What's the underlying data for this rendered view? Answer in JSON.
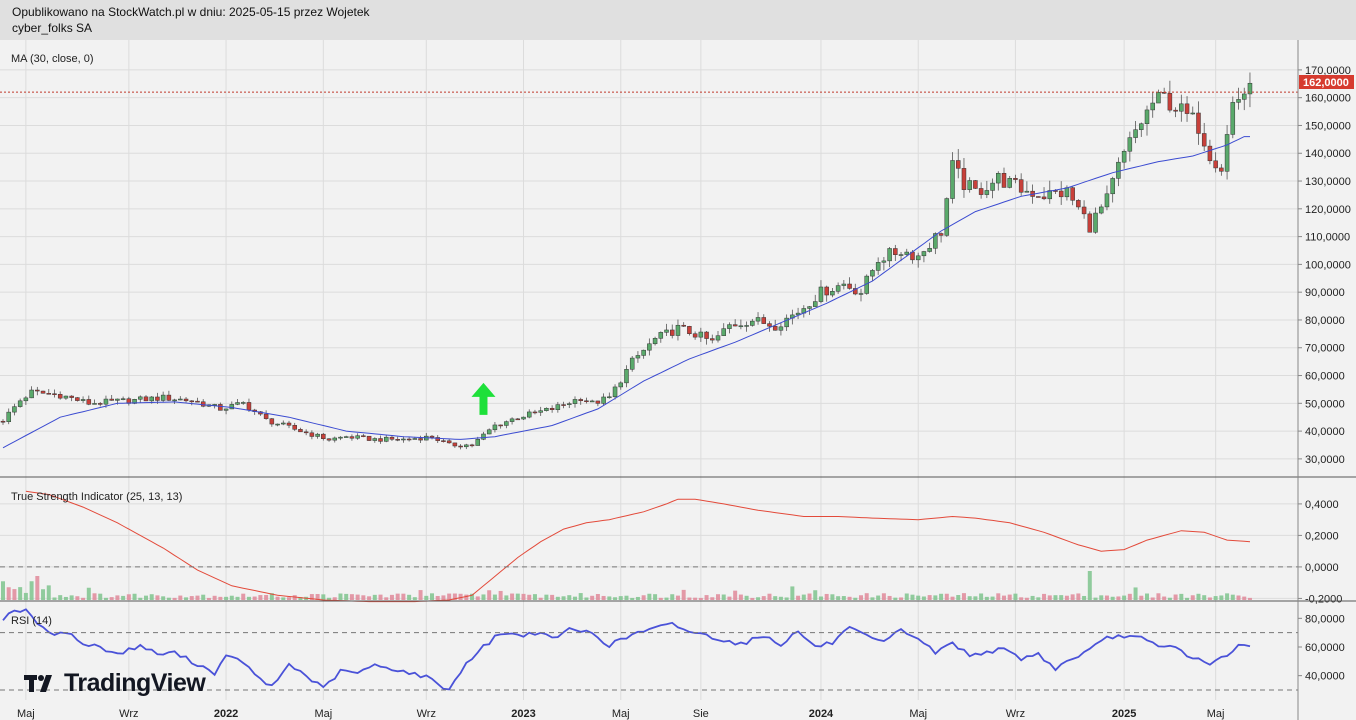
{
  "header": {
    "line1": "Opublikowano na StockWatch.pl w dniu: 2025-05-15 przez Wojetek",
    "line2": "cyber_folks SA"
  },
  "branding": {
    "logo_text": "TradingView",
    "logo_icon": "tradingview-logo-icon"
  },
  "colors": {
    "up": "#5aa96b",
    "down": "#c8403a",
    "ma": "#3b4bd1",
    "tsi": "#e34a3a",
    "rsi": "#4a52d8",
    "price_line": "#c0392b"
  },
  "chart_data": [
    {
      "type": "candlestick",
      "panel": "price",
      "indicator_label": "MA (30, close, 0)",
      "y_ticks": [
        "170,0000",
        "160,0000",
        "150,0000",
        "140,0000",
        "130,0000",
        "120,0000",
        "110,0000",
        "100,0000",
        "90,0000",
        "80,0000",
        "70,0000",
        "60,0000",
        "50,0000",
        "40,0000",
        "30,0000"
      ],
      "ylim": [
        26,
        175
      ],
      "last_price": 162,
      "last_price_label": "162,0000",
      "signal": "buy-arrow",
      "signal_week": 84,
      "x_labels": [
        {
          "week": 4,
          "label": "Maj"
        },
        {
          "week": 22,
          "label": "Wrz"
        },
        {
          "week": 39,
          "label": "2022"
        },
        {
          "week": 56,
          "label": "Maj"
        },
        {
          "week": 74,
          "label": "Wrz"
        },
        {
          "week": 91,
          "label": "2023"
        },
        {
          "week": 108,
          "label": "Maj"
        },
        {
          "week": 122,
          "label": "Sie"
        },
        {
          "week": 143,
          "label": "2024"
        },
        {
          "week": 160,
          "label": "Maj"
        },
        {
          "week": 177,
          "label": "Wrz"
        },
        {
          "week": 196,
          "label": "2025"
        },
        {
          "week": 212,
          "label": "Maj"
        }
      ],
      "close_anchors": [
        [
          0,
          44
        ],
        [
          3,
          51
        ],
        [
          5,
          54
        ],
        [
          10,
          53
        ],
        [
          15,
          50
        ],
        [
          22,
          51
        ],
        [
          28,
          52
        ],
        [
          33,
          51
        ],
        [
          38,
          48
        ],
        [
          42,
          50
        ],
        [
          46,
          44
        ],
        [
          52,
          40
        ],
        [
          57,
          37
        ],
        [
          60,
          38
        ],
        [
          65,
          37
        ],
        [
          70,
          37
        ],
        [
          75,
          38
        ],
        [
          78,
          35
        ],
        [
          82,
          35
        ],
        [
          86,
          42
        ],
        [
          90,
          45
        ],
        [
          96,
          48
        ],
        [
          101,
          52
        ],
        [
          103,
          50
        ],
        [
          106,
          52
        ],
        [
          110,
          65
        ],
        [
          114,
          73
        ],
        [
          118,
          77
        ],
        [
          121,
          75
        ],
        [
          124,
          72
        ],
        [
          127,
          78
        ],
        [
          131,
          80
        ],
        [
          135,
          78
        ],
        [
          139,
          83
        ],
        [
          143,
          90
        ],
        [
          147,
          93
        ],
        [
          150,
          90
        ],
        [
          153,
          102
        ],
        [
          157,
          105
        ],
        [
          160,
          103
        ],
        [
          164,
          112
        ],
        [
          166,
          135
        ],
        [
          168,
          129
        ],
        [
          170,
          126
        ],
        [
          174,
          131
        ],
        [
          178,
          127
        ],
        [
          182,
          125
        ],
        [
          186,
          126
        ],
        [
          190,
          114
        ],
        [
          193,
          123
        ],
        [
          195,
          135
        ],
        [
          198,
          148
        ],
        [
          201,
          158
        ],
        [
          203,
          160
        ],
        [
          206,
          155
        ],
        [
          209,
          150
        ],
        [
          211,
          140
        ],
        [
          213,
          135
        ],
        [
          215,
          158
        ],
        [
          217,
          162
        ]
      ],
      "ma_anchors": [
        [
          0,
          34
        ],
        [
          10,
          45
        ],
        [
          20,
          50
        ],
        [
          30,
          50.5
        ],
        [
          40,
          48.5
        ],
        [
          50,
          45
        ],
        [
          60,
          40
        ],
        [
          70,
          38
        ],
        [
          80,
          37
        ],
        [
          86,
          38
        ],
        [
          96,
          42
        ],
        [
          104,
          48
        ],
        [
          112,
          58
        ],
        [
          120,
          66
        ],
        [
          128,
          72
        ],
        [
          136,
          79
        ],
        [
          144,
          86
        ],
        [
          152,
          94
        ],
        [
          158,
          103
        ],
        [
          164,
          112
        ],
        [
          170,
          119
        ],
        [
          178,
          124.5
        ],
        [
          186,
          127.5
        ],
        [
          194,
          133
        ],
        [
          202,
          137
        ],
        [
          208,
          139
        ],
        [
          214,
          143
        ],
        [
          217,
          146
        ]
      ]
    },
    {
      "type": "line",
      "panel": "tsi",
      "indicator_label": "True Strength Indicator (25, 13, 13)",
      "y_ticks": [
        "0,4000",
        "0,2000",
        "0,0000",
        "-0,2000"
      ],
      "ylim": [
        -0.21,
        0.52
      ],
      "anchors": [
        [
          4,
          0.48
        ],
        [
          8,
          0.46
        ],
        [
          14,
          0.38
        ],
        [
          20,
          0.28
        ],
        [
          28,
          0.12
        ],
        [
          34,
          -0.02
        ],
        [
          40,
          -0.12
        ],
        [
          48,
          -0.18
        ],
        [
          56,
          -0.21
        ],
        [
          64,
          -0.22
        ],
        [
          72,
          -0.22
        ],
        [
          78,
          -0.21
        ],
        [
          82,
          -0.18
        ],
        [
          86,
          -0.06
        ],
        [
          90,
          0.06
        ],
        [
          94,
          0.16
        ],
        [
          98,
          0.24
        ],
        [
          102,
          0.28
        ],
        [
          106,
          0.3
        ],
        [
          112,
          0.35
        ],
        [
          116,
          0.4
        ],
        [
          118,
          0.43
        ],
        [
          121,
          0.43
        ],
        [
          126,
          0.4
        ],
        [
          132,
          0.36
        ],
        [
          140,
          0.32
        ],
        [
          146,
          0.32
        ],
        [
          152,
          0.31
        ],
        [
          160,
          0.3
        ],
        [
          166,
          0.32
        ],
        [
          170,
          0.31
        ],
        [
          176,
          0.28
        ],
        [
          182,
          0.22
        ],
        [
          188,
          0.14
        ],
        [
          192,
          0.1
        ],
        [
          196,
          0.11
        ],
        [
          200,
          0.17
        ],
        [
          206,
          0.23
        ],
        [
          210,
          0.22
        ],
        [
          214,
          0.17
        ],
        [
          218,
          0.16
        ]
      ],
      "histogram_scale": 0.18
    },
    {
      "type": "line",
      "panel": "rsi",
      "indicator_label": "RSI (14)",
      "y_ticks": [
        "80,0000",
        "60,0000",
        "40,0000"
      ],
      "ylim": [
        23,
        90
      ],
      "overbought": 70,
      "oversold": 30,
      "anchors": [
        [
          0,
          80
        ],
        [
          2,
          86
        ],
        [
          4,
          85
        ],
        [
          6,
          77
        ],
        [
          8,
          69
        ],
        [
          11,
          71
        ],
        [
          14,
          62
        ],
        [
          17,
          60
        ],
        [
          20,
          55
        ],
        [
          24,
          61
        ],
        [
          27,
          55
        ],
        [
          30,
          56
        ],
        [
          34,
          48
        ],
        [
          37,
          42
        ],
        [
          39,
          53
        ],
        [
          42,
          50
        ],
        [
          44,
          40
        ],
        [
          47,
          32
        ],
        [
          50,
          48
        ],
        [
          53,
          40
        ],
        [
          56,
          31
        ],
        [
          59,
          43
        ],
        [
          62,
          42
        ],
        [
          65,
          47
        ],
        [
          68,
          45
        ],
        [
          71,
          42
        ],
        [
          74,
          39
        ],
        [
          78,
          30
        ],
        [
          81,
          49
        ],
        [
          84,
          60
        ],
        [
          87,
          70
        ],
        [
          90,
          68
        ],
        [
          93,
          70
        ],
        [
          96,
          66
        ],
        [
          99,
          72
        ],
        [
          103,
          70
        ],
        [
          106,
          61
        ],
        [
          108,
          65
        ],
        [
          111,
          70
        ],
        [
          114,
          73
        ],
        [
          117,
          76
        ],
        [
          120,
          71
        ],
        [
          123,
          68
        ],
        [
          126,
          65
        ],
        [
          129,
          62
        ],
        [
          133,
          68
        ],
        [
          136,
          62
        ],
        [
          139,
          71
        ],
        [
          142,
          60
        ],
        [
          145,
          63
        ],
        [
          148,
          73
        ],
        [
          151,
          67
        ],
        [
          154,
          63
        ],
        [
          157,
          72
        ],
        [
          160,
          66
        ],
        [
          163,
          56
        ],
        [
          166,
          63
        ],
        [
          169,
          54
        ],
        [
          172,
          57
        ],
        [
          175,
          58
        ],
        [
          178,
          52
        ],
        [
          181,
          55
        ],
        [
          184,
          45
        ],
        [
          187,
          52
        ],
        [
          190,
          58
        ],
        [
          193,
          66
        ],
        [
          196,
          68
        ],
        [
          199,
          66
        ],
        [
          202,
          60
        ],
        [
          205,
          60
        ],
        [
          208,
          52
        ],
        [
          211,
          49
        ],
        [
          214,
          53
        ],
        [
          216,
          61
        ],
        [
          218,
          60
        ]
      ]
    }
  ]
}
